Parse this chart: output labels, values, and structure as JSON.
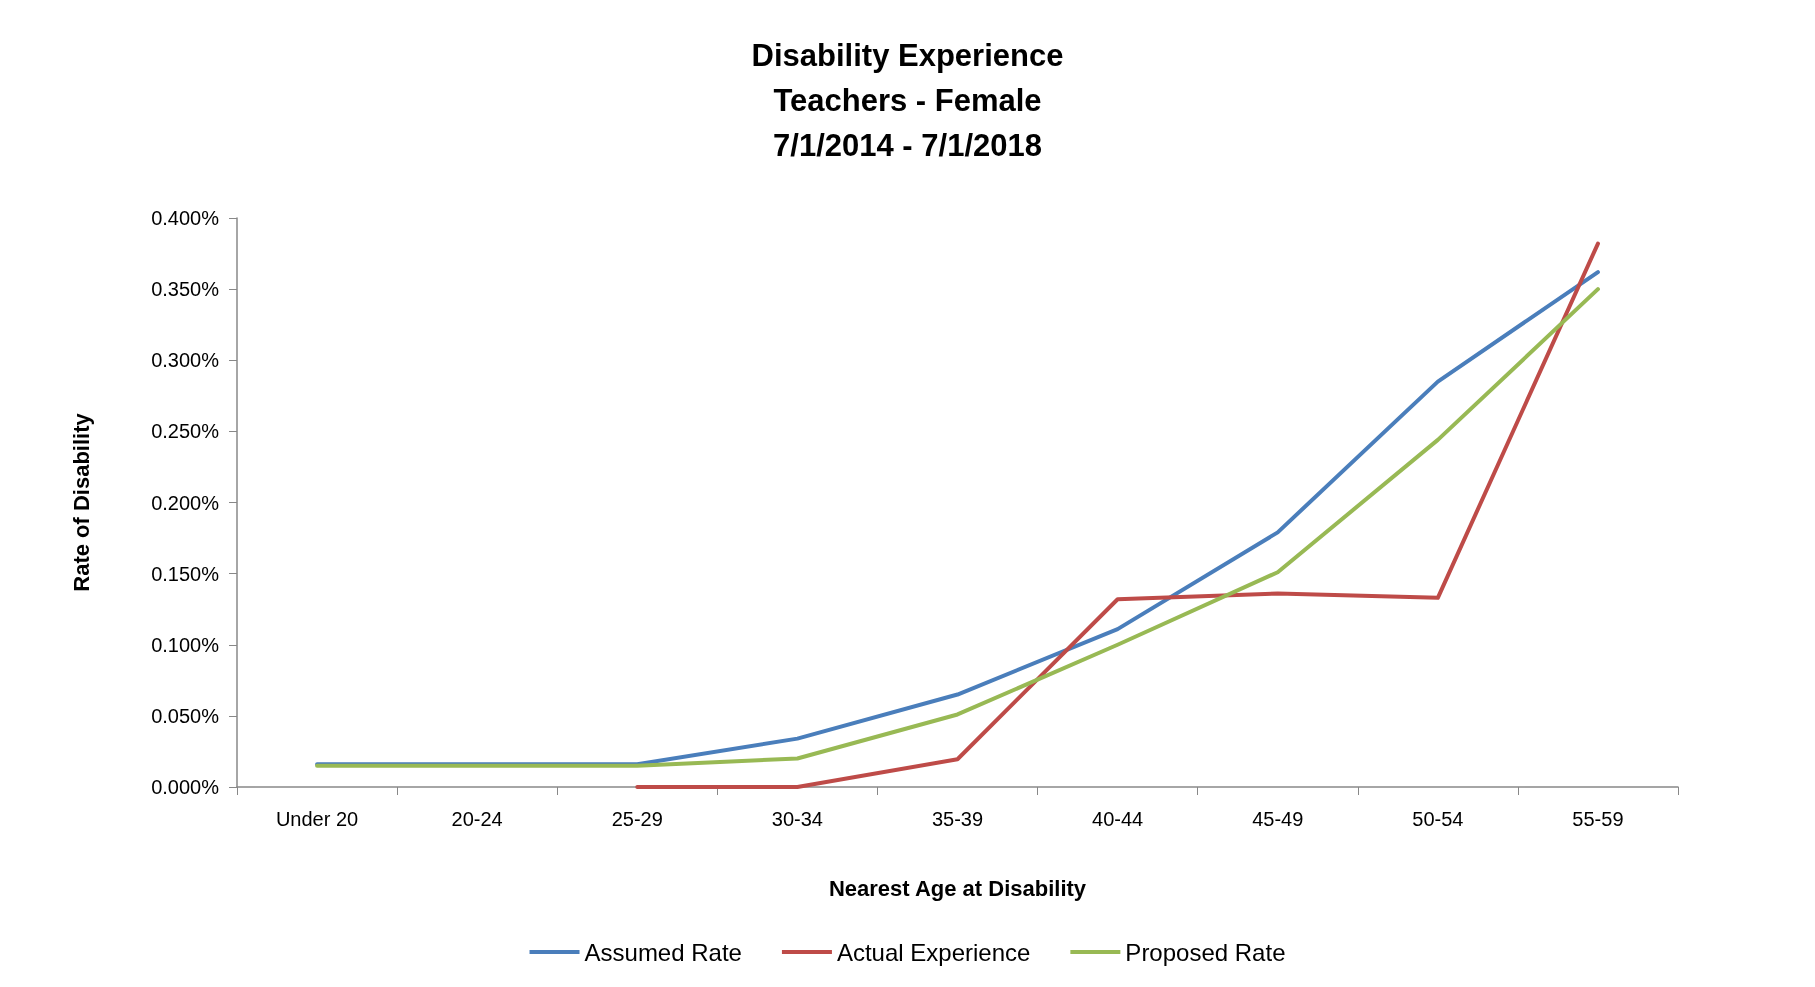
{
  "chart_data": {
    "type": "line",
    "title": "Disability Experience\nTeachers - Female\n7/1/2014 - 7/1/2018",
    "xlabel": "Nearest Age at Disability",
    "ylabel": "Rate of Disability",
    "categories": [
      "Under 20",
      "20-24",
      "25-29",
      "30-34",
      "35-39",
      "40-44",
      "45-49",
      "50-54",
      "55-59"
    ],
    "series": [
      {
        "name": "Assumed Rate",
        "color": "#4a7ebb",
        "values": [
          0.016,
          0.016,
          0.016,
          0.034,
          0.065,
          0.111,
          0.179,
          0.285,
          0.362
        ]
      },
      {
        "name": "Actual Experience",
        "color": "#be4b48",
        "values": [
          null,
          null,
          0,
          0,
          0.0195,
          0.132,
          0.136,
          0.133,
          0.382
        ]
      },
      {
        "name": "Proposed Rate",
        "color": "#98b954",
        "values": [
          0.015,
          0.015,
          0.015,
          0.02,
          0.051,
          0.1,
          0.151,
          0.244,
          0.35
        ]
      }
    ],
    "ylim": [
      0,
      0.4
    ],
    "yticks": [
      {
        "value": 0,
        "label": "0.000%"
      },
      {
        "value": 0.05,
        "label": "0.050%"
      },
      {
        "value": 0.1,
        "label": "0.100%"
      },
      {
        "value": 0.15,
        "label": "0.150%"
      },
      {
        "value": 0.2,
        "label": "0.200%"
      },
      {
        "value": 0.25,
        "label": "0.250%"
      },
      {
        "value": 0.3,
        "label": "0.300%"
      },
      {
        "value": 0.35,
        "label": "0.350%"
      },
      {
        "value": 0.4,
        "label": "0.400%"
      }
    ],
    "grid": false,
    "legend": "bottom",
    "marker": "none",
    "line_style": "solid"
  }
}
